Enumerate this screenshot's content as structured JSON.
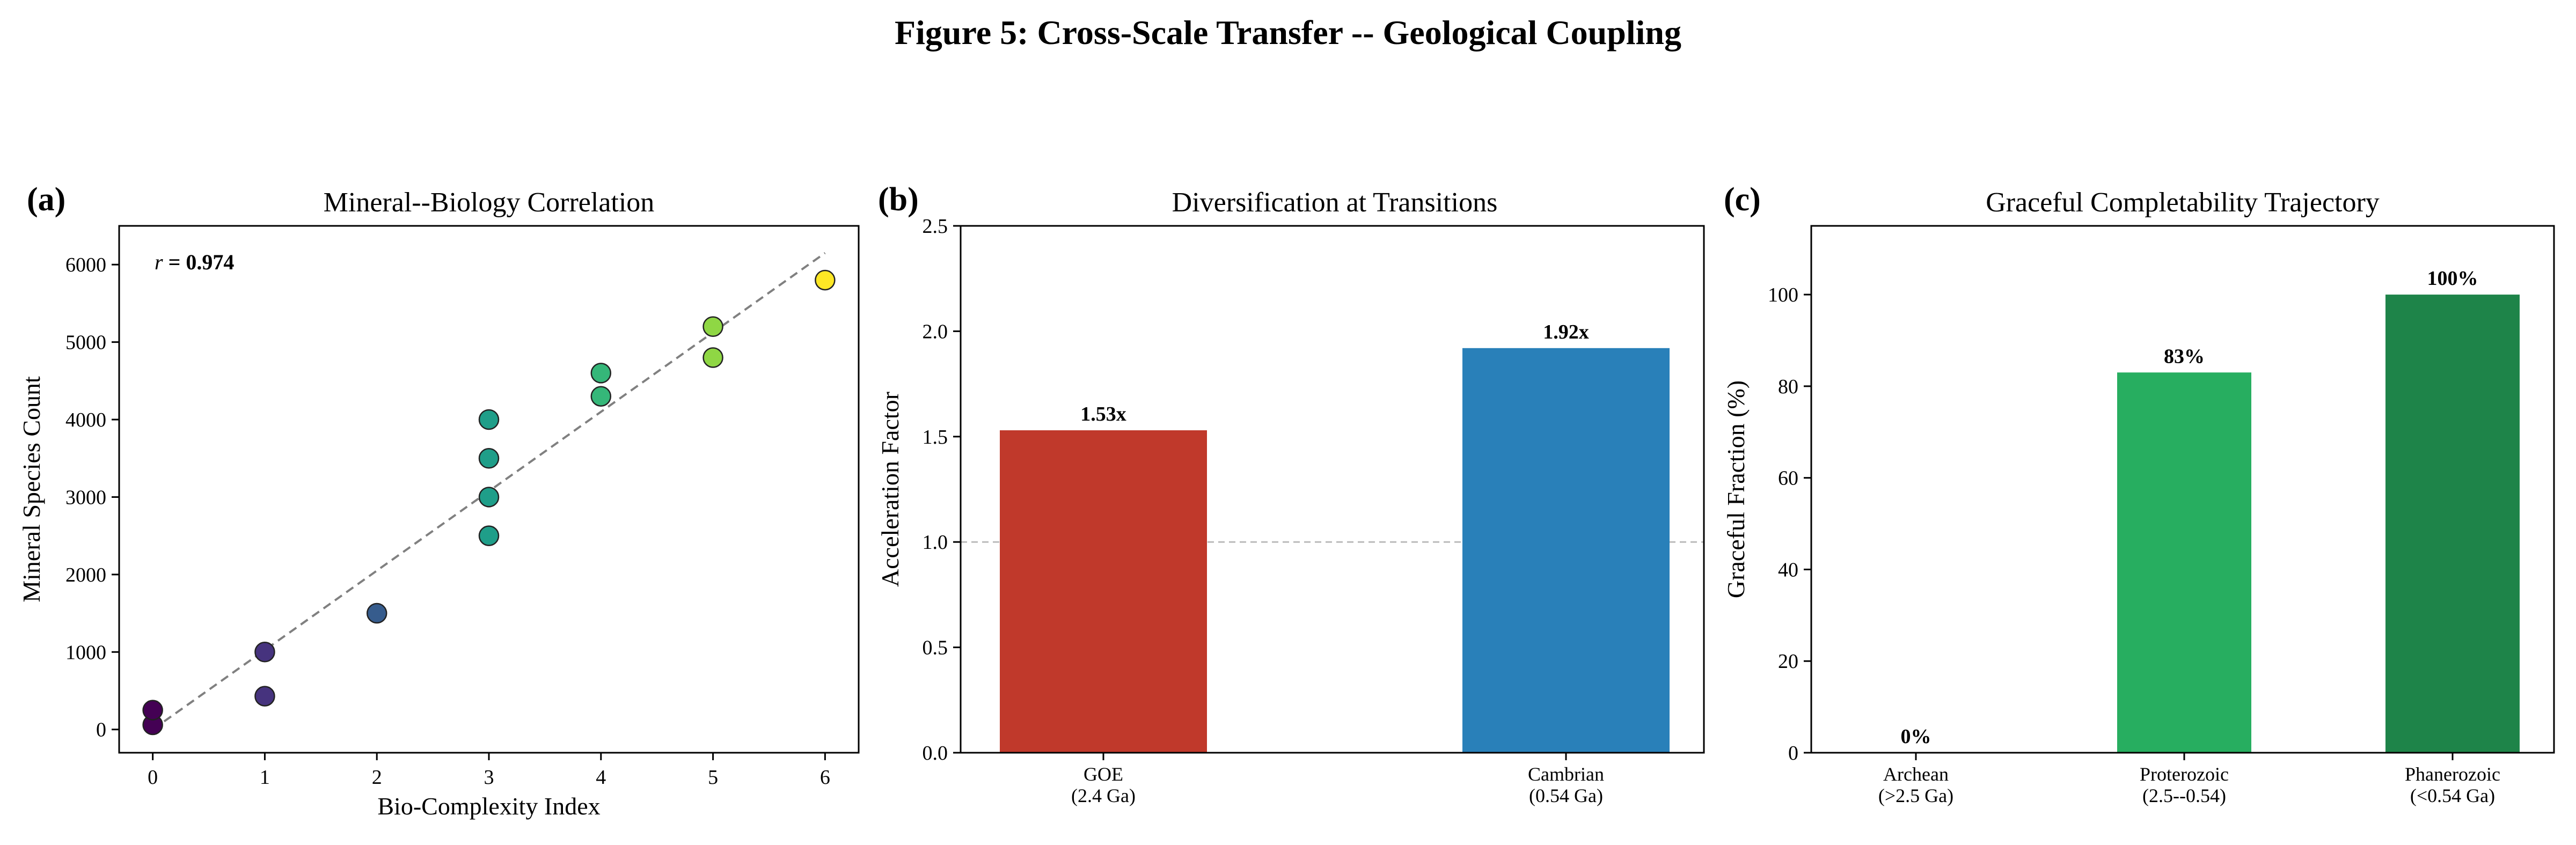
{
  "figure_title": "Figure 5: Cross-Scale Transfer -- Geological Coupling",
  "panels": {
    "a": {
      "label": "(a)"
    },
    "b": {
      "label": "(b)"
    },
    "c": {
      "label": "(c)"
    }
  },
  "colors": {
    "goe": "#c0392b",
    "cambrian": "#2980b9",
    "archean": "#27ae60",
    "proterozoic": "#27ae60",
    "phanerozoic": "#1e8449",
    "fit_line": "#808080",
    "reference_line": "#bbbbbb"
  },
  "chart_data": [
    {
      "type": "scatter",
      "title": "Mineral--Biology Correlation",
      "xlabel": "Bio-Complexity Index",
      "ylabel": "Mineral Species Count",
      "xlim": [
        -0.3,
        6.3
      ],
      "ylim": [
        -300,
        6500
      ],
      "xticks": [
        0,
        1,
        2,
        3,
        4,
        5,
        6
      ],
      "yticks": [
        0,
        1000,
        2000,
        3000,
        4000,
        5000,
        6000
      ],
      "colormap": "viridis",
      "annotation": {
        "prefix": "r",
        "value": " = 0.974"
      },
      "fit_line": {
        "x": [
          0,
          6
        ],
        "y": [
          0,
          6150
        ],
        "style": "dashed"
      },
      "points": [
        {
          "x": 0,
          "y": 60,
          "color": "#440154"
        },
        {
          "x": 0,
          "y": 250,
          "color": "#440154"
        },
        {
          "x": 1,
          "y": 430,
          "color": "#46337e"
        },
        {
          "x": 1,
          "y": 1000,
          "color": "#46337e"
        },
        {
          "x": 2,
          "y": 1500,
          "color": "#365c8d"
        },
        {
          "x": 3,
          "y": 2500,
          "color": "#1f9e89"
        },
        {
          "x": 3,
          "y": 3000,
          "color": "#1f9e89"
        },
        {
          "x": 3,
          "y": 3500,
          "color": "#1f9e89"
        },
        {
          "x": 3,
          "y": 4000,
          "color": "#1f9e89"
        },
        {
          "x": 4,
          "y": 4300,
          "color": "#35b779"
        },
        {
          "x": 4,
          "y": 4600,
          "color": "#35b779"
        },
        {
          "x": 5,
          "y": 4800,
          "color": "#8fd744"
        },
        {
          "x": 5,
          "y": 5200,
          "color": "#8fd744"
        },
        {
          "x": 6,
          "y": 5800,
          "color": "#fde725"
        }
      ],
      "grid": false
    },
    {
      "type": "bar",
      "title": "Diversification at Transitions",
      "ylabel": "Acceleration Factor",
      "categories": [
        [
          "GOE",
          "(2.4 Ga)"
        ],
        [
          "Cambrian",
          "(0.54 Ga)"
        ]
      ],
      "values": [
        1.53,
        1.92
      ],
      "value_labels": [
        "1.53x",
        "1.92x"
      ],
      "bar_colors": [
        "#c0392b",
        "#2980b9"
      ],
      "ylim": [
        0,
        2.5
      ],
      "yticks": [
        "0.0",
        "0.5",
        "1.0",
        "1.5",
        "2.0",
        "2.5"
      ],
      "reference_line": 1.0,
      "grid": false
    },
    {
      "type": "bar",
      "title": "Graceful Completability Trajectory",
      "ylabel": "Graceful Fraction (%)",
      "categories": [
        [
          "Archean",
          "(>2.5 Ga)"
        ],
        [
          "Proterozoic",
          "(2.5--0.54)"
        ],
        [
          "Phanerozoic",
          "(<0.54 Ga)"
        ]
      ],
      "values": [
        0,
        83,
        100
      ],
      "value_labels": [
        "0%",
        "83%",
        "100%"
      ],
      "bar_colors": [
        "#27ae60",
        "#27ae60",
        "#1e8449"
      ],
      "ylim": [
        0,
        115
      ],
      "yticks": [
        "0",
        "20",
        "40",
        "60",
        "80",
        "100"
      ],
      "grid": false
    }
  ]
}
